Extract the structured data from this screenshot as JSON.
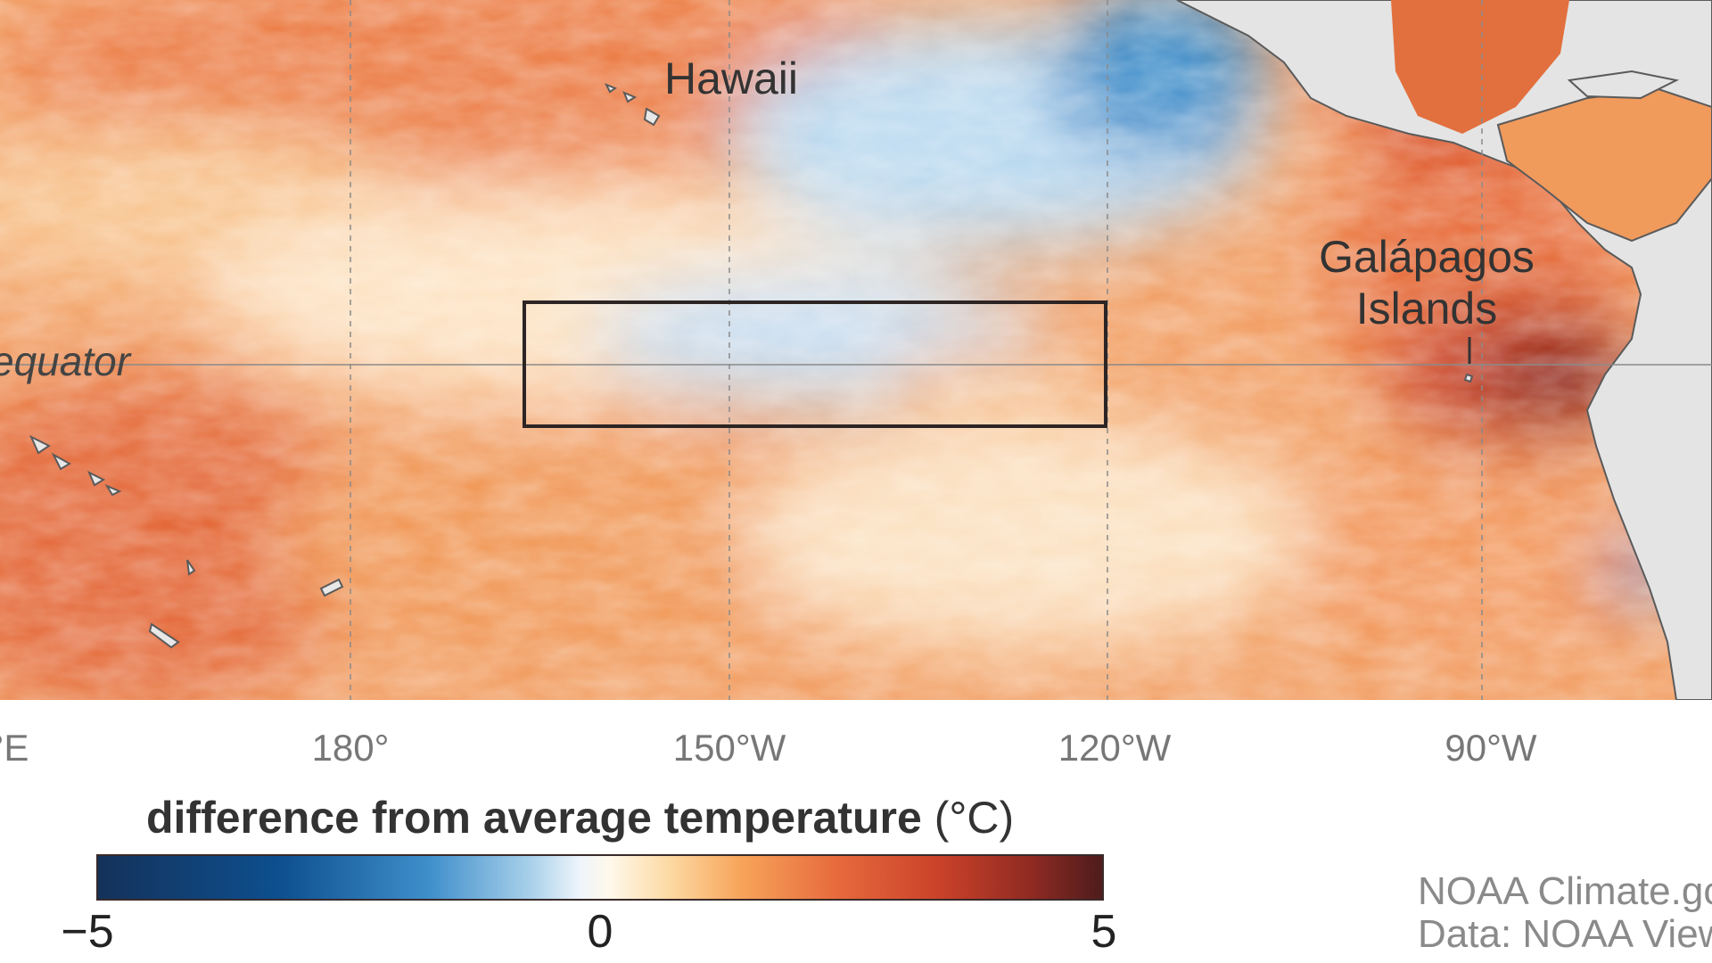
{
  "map": {
    "labels": {
      "hawaii": "Hawaii",
      "galapagos_line1": "Galápagos",
      "galapagos_line2": "Islands",
      "equator": "equator"
    },
    "longitude_ticks": [
      "°E",
      "180°",
      "150°W",
      "120°W",
      "90°W"
    ],
    "highlighted_region": {
      "description_visible": false
    }
  },
  "legend": {
    "title": "difference from average temperature",
    "unit": "(°C)",
    "min_label": "−5",
    "mid_label": "0",
    "max_label": "5",
    "colors": {
      "cold_extreme": "#14325a",
      "cold": "#3f8fcb",
      "neutral": "#fff8ea",
      "warm": "#e6683c",
      "warm_extreme": "#4e1c1c"
    }
  },
  "credits": {
    "line1": "NOAA Climate.gc",
    "line2": "Data: NOAA View"
  }
}
